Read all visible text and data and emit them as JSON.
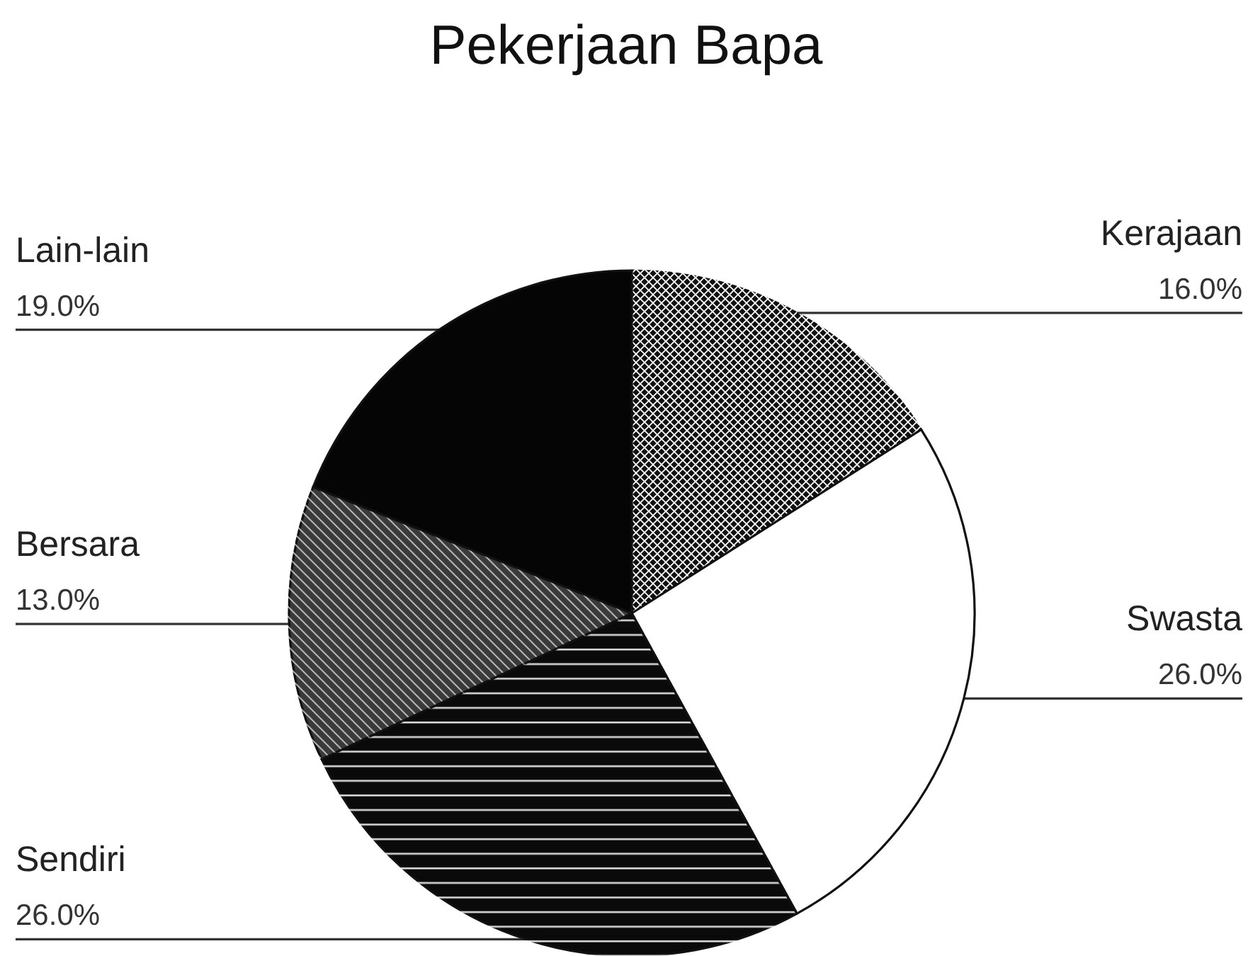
{
  "chart_data": {
    "type": "pie",
    "title": "Pekerjaan Bapa",
    "categories": [
      "Kerajaan",
      "Swasta",
      "Sendiri",
      "Bersara",
      "Lain-lain"
    ],
    "values": [
      16,
      26,
      26,
      13,
      19
    ],
    "value_labels": [
      "16.0%",
      "26.0%",
      "26.0%",
      "13.0%",
      "19.0%"
    ],
    "colors": [
      "#111111",
      "#ffffff",
      "#0a0a0a",
      "#3a3a3a",
      "#050505"
    ]
  }
}
